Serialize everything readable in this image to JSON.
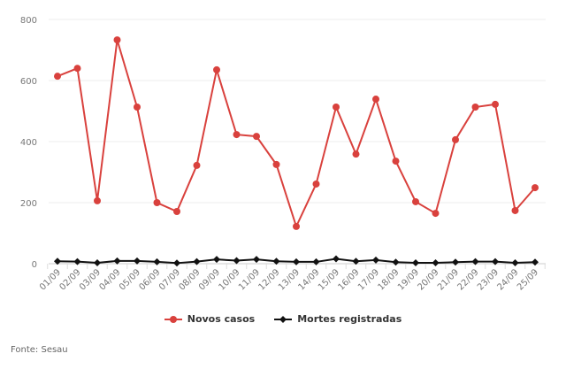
{
  "chart_data": {
    "type": "line",
    "title": "",
    "xlabel": "",
    "ylabel": "",
    "ylim": [
      0,
      800
    ],
    "yticks": [
      0,
      200,
      400,
      600,
      800
    ],
    "grid": true,
    "legend_position": "bottom",
    "categories": [
      "01/09",
      "02/09",
      "03/09",
      "04/09",
      "05/09",
      "06/09",
      "07/09",
      "08/09",
      "09/09",
      "10/09",
      "11/09",
      "12/09",
      "13/09",
      "14/09",
      "15/09",
      "16/09",
      "17/09",
      "18/09",
      "19/09",
      "20/09",
      "21/09",
      "22/09",
      "23/09",
      "24/09",
      "25/09"
    ],
    "series": [
      {
        "name": "Novos casos",
        "color": "#d9413d",
        "marker": "circle",
        "values": [
          614,
          640,
          206,
          733,
          513,
          200,
          171,
          322,
          635,
          423,
          417,
          325,
          122,
          261,
          513,
          359,
          539,
          336,
          203,
          165,
          406,
          513,
          522,
          174,
          249
        ]
      },
      {
        "name": "Mortes registradas",
        "color": "#111111",
        "marker": "diamond",
        "values": [
          8,
          7,
          3,
          9,
          9,
          6,
          2,
          7,
          14,
          10,
          14,
          8,
          6,
          6,
          16,
          8,
          12,
          5,
          3,
          3,
          5,
          7,
          7,
          3,
          5
        ]
      }
    ]
  },
  "source": "Fonte: Sesau"
}
